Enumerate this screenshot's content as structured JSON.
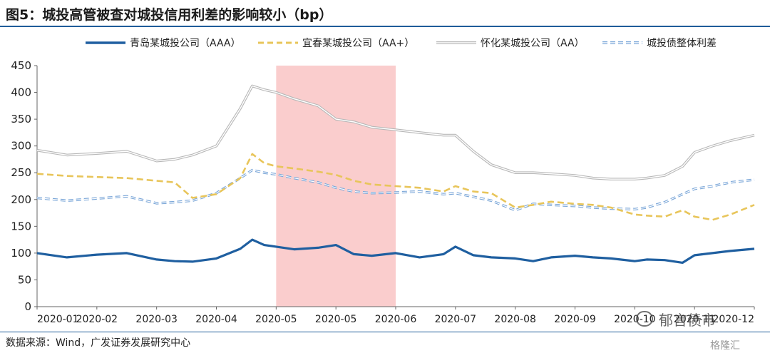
{
  "title": "图5：城投高管被查对城投信用利差的影响较小（bp）",
  "source": "数据来源：Wind，广发证券发展研究中心",
  "watermark": "郁言债市",
  "watermark2": "格隆汇",
  "colors": {
    "qingdao": "#1f5fa0",
    "yichun": "#e8c55a",
    "huaihua": "#b8b8b8",
    "overall": "#7aa6d8",
    "shade": "#f9c4c4",
    "rule": "#1f5c99"
  },
  "chart_data": {
    "type": "line",
    "title": "",
    "xlabel": "",
    "ylabel": "",
    "ylim": [
      0,
      450
    ],
    "yticks": [
      0,
      50,
      100,
      150,
      200,
      250,
      300,
      350,
      400,
      450
    ],
    "x_tick_labels": [
      "2020-01",
      "2020-02",
      "2020-03",
      "2020-04",
      "2020-05",
      "2020-05",
      "2020-06",
      "2020-07",
      "2020-08",
      "2020-09",
      "2020-10",
      "2020-11",
      "2020-12"
    ],
    "grid": false,
    "legend_position": "top",
    "shaded_period": {
      "from_tick_label": "2020-05",
      "to_tick_label": "2020-06"
    },
    "x": [
      0,
      0.5,
      1,
      1.5,
      2,
      2.3,
      2.6,
      3,
      3.4,
      3.6,
      3.8,
      4,
      4.3,
      4.7,
      5,
      5.3,
      5.6,
      6,
      6.4,
      6.8,
      7,
      7.3,
      7.6,
      8,
      8.3,
      8.6,
      9,
      9.3,
      9.6,
      10,
      10.2,
      10.5,
      10.8,
      11,
      11.3,
      11.6,
      12.0
    ],
    "series": [
      {
        "name": "青岛某城投公司（AAA）",
        "style": "solid",
        "values": [
          100,
          92,
          97,
          100,
          88,
          85,
          84,
          90,
          108,
          125,
          115,
          112,
          107,
          110,
          115,
          98,
          95,
          100,
          92,
          98,
          112,
          96,
          92,
          90,
          85,
          92,
          95,
          92,
          90,
          85,
          88,
          87,
          82,
          96,
          100,
          104,
          108
        ]
      },
      {
        "name": "宜春某城投公司（AA+）",
        "style": "dashed",
        "values": [
          248,
          244,
          242,
          240,
          235,
          232,
          203,
          210,
          240,
          285,
          268,
          262,
          258,
          252,
          246,
          235,
          228,
          225,
          222,
          215,
          225,
          215,
          212,
          185,
          190,
          196,
          192,
          190,
          185,
          172,
          170,
          168,
          180,
          168,
          162,
          172,
          190
        ]
      },
      {
        "name": "怀化某城投公司（AA）",
        "style": "double",
        "values": [
          292,
          283,
          286,
          290,
          272,
          275,
          283,
          300,
          370,
          412,
          405,
          400,
          388,
          375,
          350,
          345,
          335,
          330,
          325,
          320,
          320,
          290,
          265,
          250,
          250,
          248,
          245,
          240,
          238,
          238,
          240,
          245,
          262,
          288,
          300,
          310,
          320
        ]
      },
      {
        "name": "城投债整体利差",
        "style": "double-dashed",
        "values": [
          203,
          198,
          202,
          206,
          193,
          195,
          198,
          212,
          240,
          255,
          250,
          247,
          240,
          232,
          222,
          215,
          212,
          213,
          215,
          210,
          212,
          205,
          198,
          180,
          192,
          190,
          188,
          185,
          183,
          182,
          185,
          195,
          210,
          220,
          225,
          232,
          237
        ]
      }
    ]
  }
}
